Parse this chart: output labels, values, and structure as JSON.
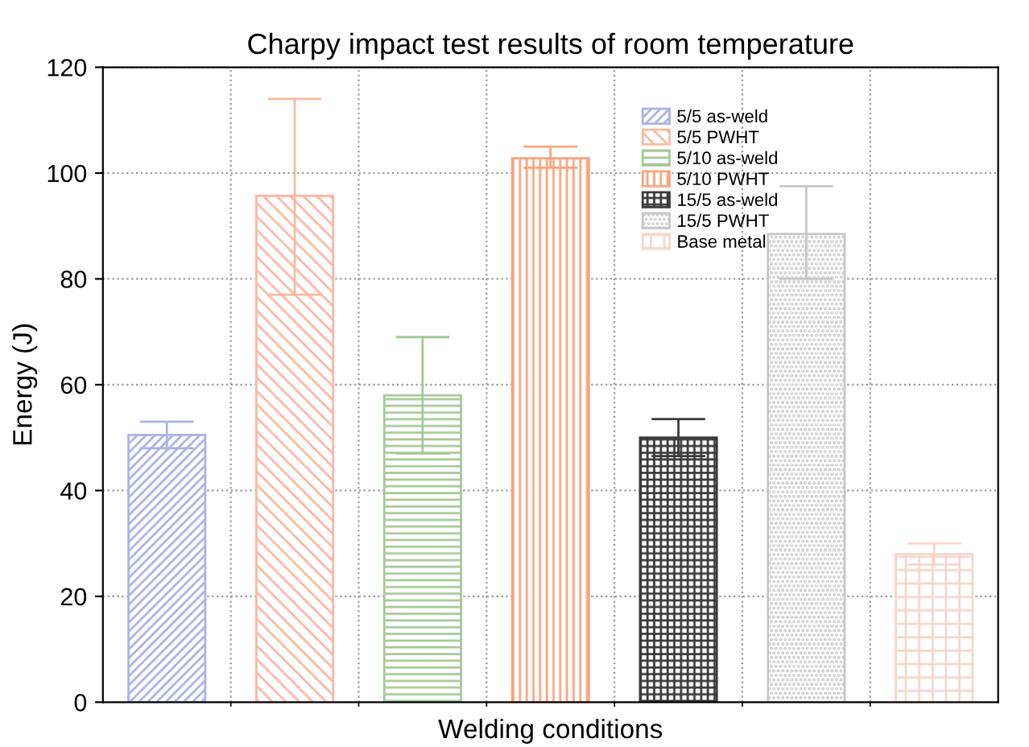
{
  "chart_data": {
    "type": "bar",
    "title": "Charpy impact test results of room temperature",
    "xlabel": "Welding conditions",
    "ylabel": "Energy (J)",
    "categories": [
      null,
      null,
      null,
      null,
      null,
      null,
      null
    ],
    "series": [
      {
        "name": "5/5 as-weld",
        "color": "#aab2e8",
        "values": [
          50.5,
          null,
          null,
          null,
          null,
          null,
          null
        ],
        "errors": [
          [
            48,
            53
          ],
          null,
          null,
          null,
          null,
          null,
          null
        ]
      },
      {
        "name": "5/5 PWHT",
        "color": "#f9b9a2",
        "values": [
          null,
          95.7,
          null,
          null,
          null,
          null,
          null
        ],
        "errors": [
          null,
          [
            77,
            114
          ],
          null,
          null,
          null,
          null,
          null
        ]
      },
      {
        "name": "5/10 as-weld",
        "color": "#a5c996",
        "values": [
          null,
          null,
          58,
          null,
          null,
          null,
          null
        ],
        "errors": [
          null,
          null,
          [
            47,
            69
          ],
          null,
          null,
          null,
          null
        ]
      },
      {
        "name": "5/10 PWHT",
        "color": "#f9a57e",
        "values": [
          null,
          null,
          null,
          102.8,
          null,
          null,
          null
        ],
        "errors": [
          null,
          null,
          null,
          [
            101,
            105
          ],
          null,
          null,
          null
        ]
      },
      {
        "name": "15/5 as-weld",
        "color": "#3a3a3a",
        "values": [
          null,
          null,
          null,
          null,
          50,
          null,
          null
        ],
        "errors": [
          null,
          null,
          null,
          null,
          [
            46.5,
            53.5
          ],
          null,
          null
        ]
      },
      {
        "name": "15/5 PWHT",
        "color": "#c9c6c6",
        "values": [
          null,
          null,
          null,
          null,
          null,
          88.5,
          null
        ],
        "errors": [
          null,
          null,
          null,
          null,
          null,
          [
            80,
            97.5
          ],
          null
        ]
      },
      {
        "name": "Base metal",
        "color": "#f6d6cc",
        "values": [
          null,
          null,
          null,
          null,
          null,
          null,
          28
        ],
        "errors": [
          null,
          null,
          null,
          null,
          null,
          null,
          [
            26,
            30
          ]
        ]
      }
    ],
    "ylim": [
      0,
      120
    ],
    "yticks": [
      0,
      20,
      40,
      60,
      80,
      100,
      120
    ],
    "grid": true,
    "legend": "top right"
  }
}
